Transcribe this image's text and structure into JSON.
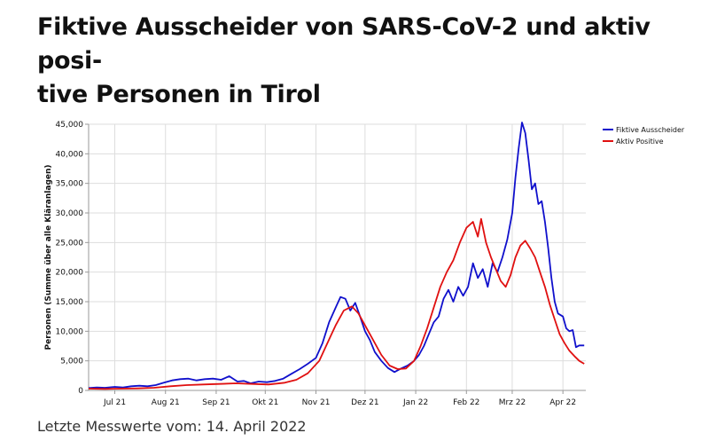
{
  "page": {
    "title_line1": "Fiktive Ausscheider von SARS-CoV-2 und aktiv posi-",
    "title_line2": "tive Personen in Tirol",
    "footnote": "Letzte Messwerte vom: 14. April 2022"
  },
  "chart_data": {
    "type": "line",
    "title": "",
    "xlabel": "",
    "ylabel": "Personen (Summe über alle Kläranlagen)",
    "ylim": [
      0,
      45000
    ],
    "yticks": [
      0,
      5000,
      10000,
      15000,
      20000,
      25000,
      30000,
      35000,
      40000,
      45000
    ],
    "ytick_labels": [
      "0",
      "5,000",
      "10,000",
      "15,000",
      "20,000",
      "25,000",
      "30,000",
      "35,000",
      "40,000",
      "45,000"
    ],
    "xlim": [
      "2021-06-15",
      "2022-04-15"
    ],
    "xticks": [
      {
        "date": "2021-07-01",
        "label": "Jul 21"
      },
      {
        "date": "2021-08-01",
        "label": "Aug 21"
      },
      {
        "date": "2021-09-01",
        "label": "Sep 21"
      },
      {
        "date": "2021-10-01",
        "label": "Okt 21"
      },
      {
        "date": "2021-11-01",
        "label": "Nov 21"
      },
      {
        "date": "2021-12-01",
        "label": "Dez 21"
      },
      {
        "date": "2022-01-01",
        "label": "Jan 22"
      },
      {
        "date": "2022-02-01",
        "label": "Feb 22"
      },
      {
        "date": "2022-03-01",
        "label": "Mrz 22"
      },
      {
        "date": "2022-04-01",
        "label": "Apr 22"
      }
    ],
    "grid": true,
    "legend_position": "top-right",
    "series": [
      {
        "name": "Fiktive Ausscheider",
        "color": "#1010cc",
        "points": [
          [
            "2021-06-15",
            400
          ],
          [
            "2021-06-20",
            500
          ],
          [
            "2021-06-25",
            450
          ],
          [
            "2021-07-01",
            600
          ],
          [
            "2021-07-06",
            500
          ],
          [
            "2021-07-11",
            700
          ],
          [
            "2021-07-16",
            800
          ],
          [
            "2021-07-21",
            700
          ],
          [
            "2021-07-26",
            900
          ],
          [
            "2021-07-31",
            1300
          ],
          [
            "2021-08-05",
            1700
          ],
          [
            "2021-08-10",
            1900
          ],
          [
            "2021-08-15",
            2000
          ],
          [
            "2021-08-20",
            1700
          ],
          [
            "2021-08-25",
            1900
          ],
          [
            "2021-08-30",
            2000
          ],
          [
            "2021-09-04",
            1800
          ],
          [
            "2021-09-09",
            2400
          ],
          [
            "2021-09-14",
            1500
          ],
          [
            "2021-09-18",
            1600
          ],
          [
            "2021-09-22",
            1200
          ],
          [
            "2021-09-27",
            1500
          ],
          [
            "2021-10-02",
            1400
          ],
          [
            "2021-10-07",
            1600
          ],
          [
            "2021-10-12",
            2000
          ],
          [
            "2021-10-17",
            2800
          ],
          [
            "2021-10-22",
            3600
          ],
          [
            "2021-10-27",
            4500
          ],
          [
            "2021-11-01",
            5500
          ],
          [
            "2021-11-05",
            8000
          ],
          [
            "2021-11-09",
            11500
          ],
          [
            "2021-11-13",
            14000
          ],
          [
            "2021-11-16",
            15800
          ],
          [
            "2021-11-19",
            15500
          ],
          [
            "2021-11-22",
            13500
          ],
          [
            "2021-11-25",
            14800
          ],
          [
            "2021-11-28",
            12500
          ],
          [
            "2021-12-01",
            10000
          ],
          [
            "2021-12-04",
            8500
          ],
          [
            "2021-12-07",
            6500
          ],
          [
            "2021-12-11",
            5000
          ],
          [
            "2021-12-15",
            3800
          ],
          [
            "2021-12-19",
            3100
          ],
          [
            "2021-12-23",
            3700
          ],
          [
            "2021-12-27",
            4200
          ],
          [
            "2021-12-31",
            5000
          ],
          [
            "2022-01-03",
            6000
          ],
          [
            "2022-01-06",
            7500
          ],
          [
            "2022-01-09",
            9500
          ],
          [
            "2022-01-12",
            11500
          ],
          [
            "2022-01-15",
            12500
          ],
          [
            "2022-01-18",
            15500
          ],
          [
            "2022-01-21",
            17000
          ],
          [
            "2022-01-24",
            15000
          ],
          [
            "2022-01-27",
            17500
          ],
          [
            "2022-01-30",
            16000
          ],
          [
            "2022-02-02",
            17500
          ],
          [
            "2022-02-05",
            21500
          ],
          [
            "2022-02-08",
            19000
          ],
          [
            "2022-02-11",
            20500
          ],
          [
            "2022-02-14",
            17500
          ],
          [
            "2022-02-17",
            21500
          ],
          [
            "2022-02-20",
            20000
          ],
          [
            "2022-02-23",
            22500
          ],
          [
            "2022-02-26",
            25500
          ],
          [
            "2022-03-01",
            30000
          ],
          [
            "2022-03-03",
            36000
          ],
          [
            "2022-03-05",
            41000
          ],
          [
            "2022-03-07",
            45300
          ],
          [
            "2022-03-09",
            43500
          ],
          [
            "2022-03-11",
            39000
          ],
          [
            "2022-03-13",
            34000
          ],
          [
            "2022-03-15",
            35000
          ],
          [
            "2022-03-17",
            31500
          ],
          [
            "2022-03-19",
            32000
          ],
          [
            "2022-03-21",
            28500
          ],
          [
            "2022-03-23",
            24000
          ],
          [
            "2022-03-25",
            19000
          ],
          [
            "2022-03-27",
            15000
          ],
          [
            "2022-03-29",
            13000
          ],
          [
            "2022-04-01",
            12500
          ],
          [
            "2022-04-03",
            10500
          ],
          [
            "2022-04-05",
            10000
          ],
          [
            "2022-04-07",
            10200
          ],
          [
            "2022-04-09",
            7300
          ],
          [
            "2022-04-11",
            7600
          ],
          [
            "2022-04-14",
            7600
          ]
        ]
      },
      {
        "name": "Aktiv Positive",
        "color": "#e01010",
        "points": [
          [
            "2021-06-15",
            300
          ],
          [
            "2021-06-25",
            250
          ],
          [
            "2021-07-05",
            300
          ],
          [
            "2021-07-15",
            350
          ],
          [
            "2021-07-25",
            450
          ],
          [
            "2021-08-04",
            700
          ],
          [
            "2021-08-14",
            900
          ],
          [
            "2021-08-24",
            1000
          ],
          [
            "2021-09-03",
            1100
          ],
          [
            "2021-09-13",
            1200
          ],
          [
            "2021-09-23",
            1100
          ],
          [
            "2021-10-03",
            1000
          ],
          [
            "2021-10-13",
            1300
          ],
          [
            "2021-10-20",
            1800
          ],
          [
            "2021-10-27",
            2900
          ],
          [
            "2021-11-03",
            5000
          ],
          [
            "2021-11-08",
            8000
          ],
          [
            "2021-11-13",
            11000
          ],
          [
            "2021-11-18",
            13500
          ],
          [
            "2021-11-23",
            14200
          ],
          [
            "2021-11-27",
            13000
          ],
          [
            "2021-12-01",
            11000
          ],
          [
            "2021-12-06",
            8500
          ],
          [
            "2021-12-11",
            6000
          ],
          [
            "2021-12-16",
            4200
          ],
          [
            "2021-12-21",
            3600
          ],
          [
            "2021-12-26",
            3700
          ],
          [
            "2021-12-31",
            5000
          ],
          [
            "2022-01-04",
            7500
          ],
          [
            "2022-01-08",
            10500
          ],
          [
            "2022-01-12",
            14000
          ],
          [
            "2022-01-16",
            17500
          ],
          [
            "2022-01-20",
            20000
          ],
          [
            "2022-01-24",
            22000
          ],
          [
            "2022-01-28",
            25000
          ],
          [
            "2022-02-01",
            27500
          ],
          [
            "2022-02-05",
            28500
          ],
          [
            "2022-02-08",
            26000
          ],
          [
            "2022-02-10",
            29000
          ],
          [
            "2022-02-13",
            25000
          ],
          [
            "2022-02-16",
            22500
          ],
          [
            "2022-02-19",
            20500
          ],
          [
            "2022-02-22",
            18500
          ],
          [
            "2022-02-25",
            17500
          ],
          [
            "2022-02-28",
            19500
          ],
          [
            "2022-03-03",
            22500
          ],
          [
            "2022-03-06",
            24500
          ],
          [
            "2022-03-09",
            25300
          ],
          [
            "2022-03-12",
            24000
          ],
          [
            "2022-03-15",
            22500
          ],
          [
            "2022-03-18",
            20000
          ],
          [
            "2022-03-21",
            17500
          ],
          [
            "2022-03-24",
            14500
          ],
          [
            "2022-03-27",
            12000
          ],
          [
            "2022-03-30",
            9500
          ],
          [
            "2022-04-02",
            8000
          ],
          [
            "2022-04-05",
            6700
          ],
          [
            "2022-04-08",
            5800
          ],
          [
            "2022-04-11",
            5000
          ],
          [
            "2022-04-14",
            4500
          ]
        ]
      }
    ]
  }
}
